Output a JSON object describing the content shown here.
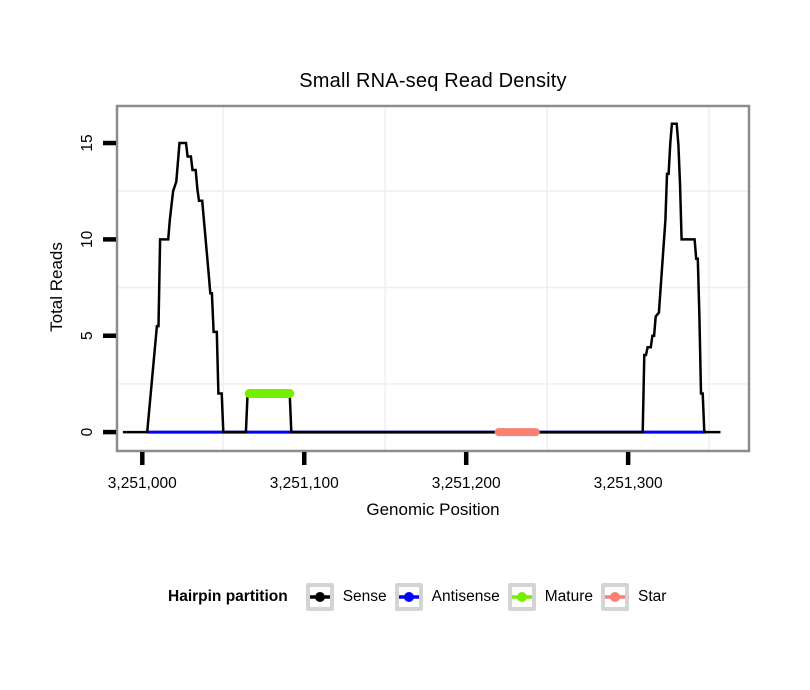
{
  "title": "Small RNA-seq Read Density",
  "axes": {
    "x": {
      "label": "Genomic Position",
      "domain": [
        3250985,
        3251374
      ],
      "ticks": [
        {
          "value": 3251000,
          "label": "3,251,000"
        },
        {
          "value": 3251100,
          "label": "3,251,100"
        },
        {
          "value": 3251200,
          "label": "3,251,200"
        },
        {
          "value": 3251300,
          "label": "3,251,300"
        }
      ],
      "minor": [
        3251050,
        3251150,
        3251250,
        3251350
      ]
    },
    "y": {
      "label": "Total Reads",
      "domain": [
        -0.93,
        16.87
      ],
      "ticks": [
        {
          "value": 0,
          "label": "0"
        },
        {
          "value": 5,
          "label": "5"
        },
        {
          "value": 10,
          "label": "10"
        },
        {
          "value": 15,
          "label": "15"
        }
      ],
      "minor": [
        2.5,
        7.5,
        12.5
      ]
    }
  },
  "chart_data": {
    "type": "line",
    "title": "Small RNA-seq Read Density",
    "xlabel": "Genomic Position",
    "ylabel": "Total Reads",
    "xlim": [
      3250985,
      3251374
    ],
    "ylim": [
      -0.93,
      16.87
    ],
    "grid": "minor-only",
    "legend_position": "bottom",
    "series": [
      {
        "name": "Antisense",
        "color": "#0000ff",
        "width": 3,
        "linecap": "butt",
        "points": [
          [
            3251003,
            0
          ],
          [
            3251348,
            0
          ]
        ]
      },
      {
        "name": "Sense",
        "color": "#000000",
        "width": 2.5,
        "linecap": "butt",
        "points": [
          [
            3250988,
            0
          ],
          [
            3251003,
            0
          ],
          [
            3251009,
            5.5
          ],
          [
            3251010,
            5.5
          ],
          [
            3251011,
            10
          ],
          [
            3251016,
            10
          ],
          [
            3251017,
            11
          ],
          [
            3251019,
            12.5
          ],
          [
            3251021,
            13
          ],
          [
            3251023,
            15
          ],
          [
            3251027,
            15
          ],
          [
            3251028,
            14.3
          ],
          [
            3251030,
            14.3
          ],
          [
            3251031,
            13.6
          ],
          [
            3251033,
            13.6
          ],
          [
            3251034,
            12.6
          ],
          [
            3251035,
            12
          ],
          [
            3251037,
            12
          ],
          [
            3251041,
            8.2
          ],
          [
            3251042,
            7.2
          ],
          [
            3251043,
            7.2
          ],
          [
            3251044,
            5.2
          ],
          [
            3251046,
            5.2
          ],
          [
            3251047,
            2
          ],
          [
            3251049,
            2
          ],
          [
            3251050,
            0
          ],
          [
            3251064,
            0
          ],
          [
            3251065,
            2
          ],
          [
            3251091,
            2
          ],
          [
            3251092,
            0
          ],
          [
            3251309,
            0
          ],
          [
            3251310,
            4
          ],
          [
            3251311,
            4
          ],
          [
            3251312,
            4.4
          ],
          [
            3251314,
            4.4
          ],
          [
            3251315,
            5
          ],
          [
            3251316,
            5
          ],
          [
            3251317,
            6
          ],
          [
            3251319,
            6.2
          ],
          [
            3251323,
            11
          ],
          [
            3251324,
            13.4
          ],
          [
            3251325,
            13.4
          ],
          [
            3251326,
            15
          ],
          [
            3251327,
            16
          ],
          [
            3251330,
            16
          ],
          [
            3251331,
            14.9
          ],
          [
            3251332,
            12.9
          ],
          [
            3251333,
            10
          ],
          [
            3251341,
            10
          ],
          [
            3251342,
            9
          ],
          [
            3251343,
            9
          ],
          [
            3251344,
            6
          ],
          [
            3251345,
            2
          ],
          [
            3251346,
            2
          ],
          [
            3251347,
            0
          ],
          [
            3251357,
            0
          ]
        ]
      },
      {
        "name": "Mature",
        "color": "#76ee00",
        "width": 9,
        "linecap": "round",
        "points": [
          [
            3251066,
            2
          ],
          [
            3251091,
            2
          ]
        ]
      },
      {
        "name": "Star",
        "color": "#fa8072",
        "width": 8,
        "linecap": "round",
        "points": [
          [
            3251220,
            0
          ],
          [
            3251243,
            0
          ]
        ]
      }
    ]
  },
  "legend": {
    "title": "Hairpin partition",
    "items": [
      {
        "label": "Sense",
        "color": "#000000"
      },
      {
        "label": "Antisense",
        "color": "#0000ff"
      },
      {
        "label": "Mature",
        "color": "#76ee00"
      },
      {
        "label": "Star",
        "color": "#fa8072"
      }
    ]
  },
  "colors": {
    "background": "#ffffff",
    "panel_border": "#8c8c8c",
    "grid_minor": "#f0f0f0",
    "tick": "#000000",
    "text": "#000000"
  }
}
